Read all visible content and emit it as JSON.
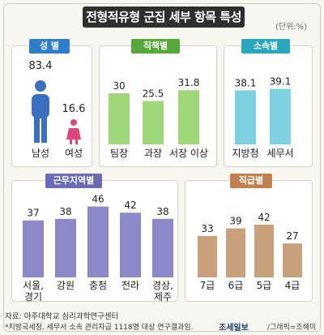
{
  "title": "전형적유형 군집 세부 항목 특성",
  "unit": "(단위:%)",
  "footer": {
    "source": "자료: 아주대학교 심리과학연구센터",
    "note": "*지방국세청, 세무서 소속 관리자급 1118명 대상 연구결과임.",
    "logo": "조세일보",
    "credit": "/그래픽=조혜미"
  },
  "colors": {
    "gender_male": "#3d6fc0",
    "gender_female": "#e0447f",
    "position": "#9fd77a",
    "affiliation": "#7ecfe0",
    "region": "#8d88c8",
    "rank": "#c9a07c",
    "badge_gender": "#2f7ec9",
    "badge_position": "#56a83a",
    "badge_affiliation": "#2aa6c0",
    "badge_region": "#6c6ab5",
    "badge_rank": "#c08050"
  },
  "chart_data": [
    {
      "id": "gender",
      "type": "bar",
      "title": "성 별",
      "categories": [
        "남성",
        "여성"
      ],
      "values": [
        83.4,
        16.6
      ],
      "icons": [
        "male-figure-icon",
        "female-figure-icon"
      ]
    },
    {
      "id": "position",
      "type": "bar",
      "title": "직책별",
      "categories": [
        "팀장",
        "과장",
        "서장 이상"
      ],
      "values": [
        30,
        25.5,
        31.8
      ]
    },
    {
      "id": "affiliation",
      "type": "bar",
      "title": "소속별",
      "categories": [
        "지방청",
        "세무서"
      ],
      "values": [
        38.1,
        39.1
      ]
    },
    {
      "id": "region",
      "type": "bar",
      "title": "근무지역별",
      "categories": [
        "서울,\n경기",
        "강원",
        "충청",
        "전라",
        "경상,\n제주"
      ],
      "values": [
        37,
        38,
        46,
        42,
        38
      ]
    },
    {
      "id": "rank",
      "type": "bar",
      "title": "직급별",
      "categories": [
        "7급",
        "6급",
        "5급",
        "4급"
      ],
      "values": [
        33,
        39,
        42,
        27
      ]
    }
  ]
}
